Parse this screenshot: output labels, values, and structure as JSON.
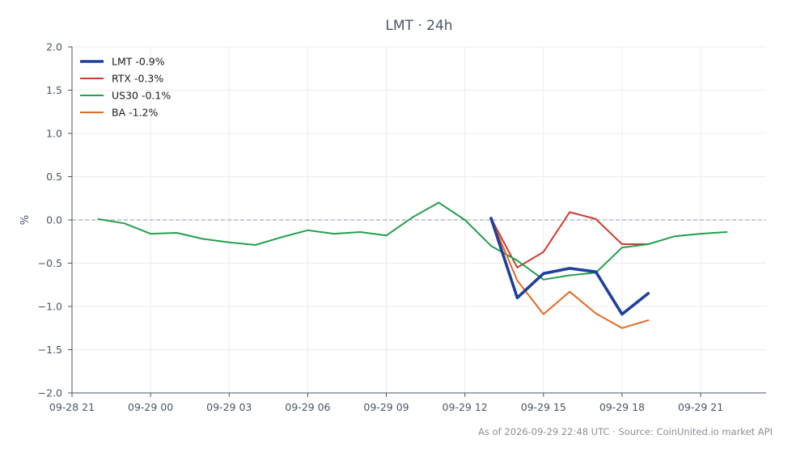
{
  "chart_data": {
    "type": "line",
    "title": "LMT · 24h",
    "ylabel": "%",
    "xlabel": "",
    "ylim": [
      -2.0,
      2.0
    ],
    "yticks": [
      2.0,
      1.5,
      1.0,
      0.5,
      0.0,
      -0.5,
      -1.0,
      -1.5,
      -2.0
    ],
    "ytick_labels": [
      "2.0",
      "1.5",
      "1.0",
      "0.5",
      "0.0",
      "−0.5",
      "−1.0",
      "−1.5",
      "−2.0"
    ],
    "xlim": [
      0,
      26.5
    ],
    "xticks": [
      0,
      3,
      6,
      9,
      12,
      15,
      18,
      21,
      24
    ],
    "xtick_labels": [
      "09-28 21",
      "09-29 00",
      "09-29 03",
      "09-29 06",
      "09-29 09",
      "09-29 12",
      "09-29 15",
      "09-29 18",
      "09-29 21"
    ],
    "grid": true,
    "zero_line": true,
    "legend_position": "top-left",
    "series": [
      {
        "name": "LMT -0.9%",
        "color": "#1f3f9e",
        "bold": true,
        "x": [
          16,
          17,
          18,
          19,
          20,
          21,
          22
        ],
        "y": [
          0.02,
          -0.9,
          -0.62,
          -0.56,
          -0.6,
          -1.09,
          -0.85
        ]
      },
      {
        "name": "RTX -0.3%",
        "color": "#d03a32",
        "bold": false,
        "x": [
          16,
          17,
          18,
          19,
          20,
          21,
          22
        ],
        "y": [
          0.02,
          -0.55,
          -0.37,
          0.09,
          0.01,
          -0.28,
          -0.28
        ]
      },
      {
        "name": "US30 -0.1%",
        "color": "#22a04c",
        "bold": false,
        "x": [
          1,
          2,
          3,
          4,
          5,
          6,
          7,
          8,
          9,
          10,
          11,
          12,
          13,
          14,
          15,
          16,
          17,
          18,
          19,
          20,
          21,
          22,
          23,
          24,
          25
        ],
        "y": [
          0.01,
          -0.04,
          -0.16,
          -0.15,
          -0.22,
          -0.26,
          -0.29,
          -0.2,
          -0.12,
          -0.16,
          -0.14,
          -0.18,
          0.03,
          0.2,
          0.0,
          -0.3,
          -0.47,
          -0.69,
          -0.64,
          -0.61,
          -0.32,
          -0.28,
          -0.19,
          -0.16,
          -0.14
        ]
      },
      {
        "name": "BA -1.2%",
        "color": "#e06a1f",
        "bold": false,
        "x": [
          16,
          17,
          18,
          19,
          20,
          21,
          22
        ],
        "y": [
          0.02,
          -0.7,
          -1.09,
          -0.83,
          -1.08,
          -1.25,
          -1.16
        ]
      }
    ]
  },
  "footer": "As of 2026-09-29 22:48 UTC · Source: CoinUnited.io market API"
}
